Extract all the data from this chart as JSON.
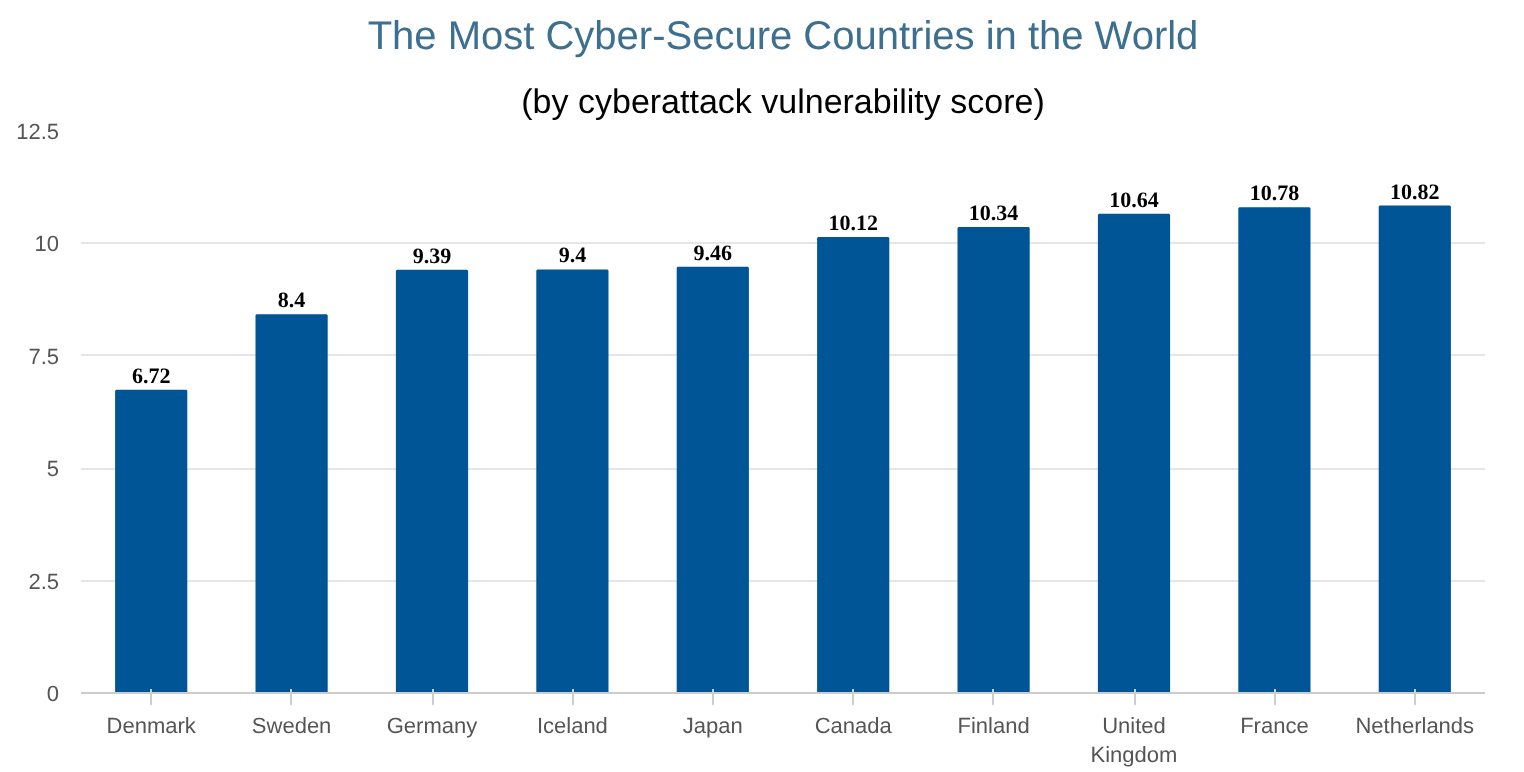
{
  "chart_data": {
    "type": "bar",
    "title": "The Most Cyber-Secure Countries in the World",
    "subtitle": "(by cyberattack vulnerability score)",
    "categories": [
      "Denmark",
      "Sweden",
      "Germany",
      "Iceland",
      "Japan",
      "Canada",
      "Finland",
      "United Kingdom",
      "France",
      "Netherlands"
    ],
    "values": [
      6.72,
      8.4,
      9.39,
      9.4,
      9.46,
      10.12,
      10.34,
      10.64,
      10.78,
      10.82
    ],
    "color": "#005596",
    "ylim": [
      0,
      12.5
    ],
    "yticks": [
      0,
      2.5,
      5,
      7.5,
      10,
      12.5
    ],
    "grid": "y",
    "data_labels": true
  }
}
